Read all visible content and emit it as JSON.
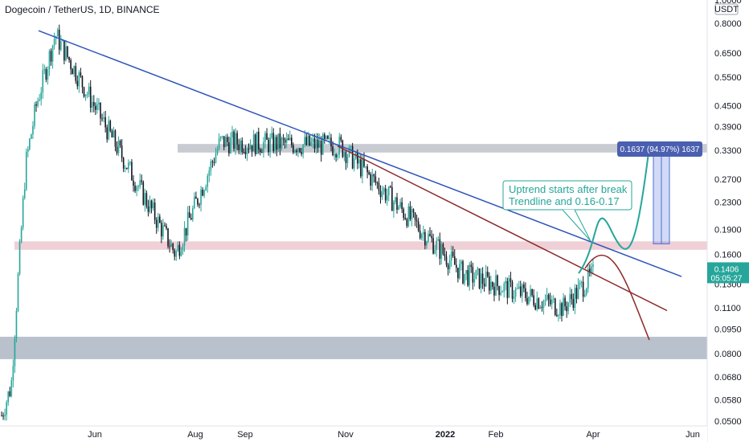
{
  "header": {
    "title": "Dogecoin / TetherUS, 1D, BINANCE"
  },
  "chart_data": {
    "type": "candlestick",
    "title": "Dogecoin / TetherUS, 1D, BINANCE",
    "y_scale": "log",
    "currency": "USDT",
    "y_ticks": [
      "1.0000",
      "0.8000",
      "0.6500",
      "0.5500",
      "0.4500",
      "0.3900",
      "0.3300",
      "0.2700",
      "0.2300",
      "0.1900",
      "0.1600",
      "0.1300",
      "0.1100",
      "0.0950",
      "0.0800",
      "0.0680",
      "0.0580",
      "0.0500"
    ],
    "y_tick_values": [
      1.0,
      0.8,
      0.65,
      0.55,
      0.45,
      0.39,
      0.33,
      0.27,
      0.23,
      0.19,
      0.16,
      0.13,
      0.11,
      0.095,
      0.08,
      0.068,
      0.058,
      0.05
    ],
    "x_ticks": [
      {
        "label": "Jun",
        "bold": false
      },
      {
        "label": "Aug",
        "bold": false
      },
      {
        "label": "Sep",
        "bold": false
      },
      {
        "label": "Nov",
        "bold": false
      },
      {
        "label": "2022",
        "bold": true
      },
      {
        "label": "Feb",
        "bold": false
      },
      {
        "label": "Apr",
        "bold": false
      },
      {
        "label": "Jun",
        "bold": false
      }
    ],
    "last_price": {
      "value": "0.1406",
      "countdown": "05:05:27"
    },
    "measure_label": "0.1637 (94.97%) 1637",
    "annotation_lines": [
      "Uptrend starts after break",
      "Trendline and 0.16-0.17"
    ],
    "zones": [
      {
        "name": "resistance",
        "from": 0.325,
        "to": 0.345,
        "color": "#9aa3ad"
      },
      {
        "name": "support",
        "from": 0.165,
        "to": 0.175,
        "color": "#e2aab6"
      },
      {
        "name": "low-support",
        "from": 0.077,
        "to": 0.09,
        "color": "#7d8ea3"
      }
    ],
    "key_points": [
      {
        "date": "2021-05-08",
        "value": 0.74
      },
      {
        "date": "2021-07-20",
        "value": 0.16
      },
      {
        "date": "2021-08-16",
        "value": 0.35
      },
      {
        "date": "2021-10-28",
        "value": 0.34
      },
      {
        "date": "2022-01-10",
        "value": 0.14
      },
      {
        "date": "2022-03-12",
        "value": 0.11
      },
      {
        "date": "2022-03-31",
        "value": 0.1406
      }
    ],
    "colors": {
      "up": "#26a69a",
      "down": "#131722",
      "trend1": "#2e54b8",
      "trend2": "#8b2a2a",
      "projection_up": "#26a69a",
      "projection_down": "#8b2a2a",
      "measure": "#4b6cd6",
      "price_label": "#26a69a"
    }
  }
}
